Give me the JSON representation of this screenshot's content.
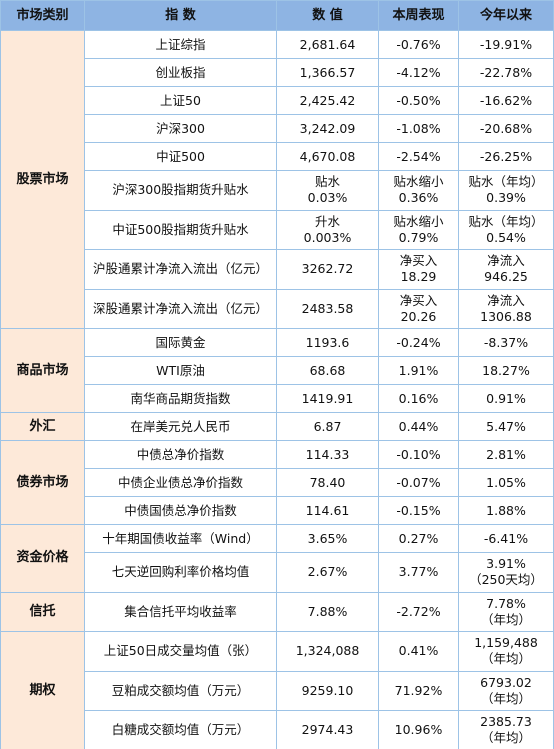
{
  "header": [
    "市场类别",
    "指 数",
    "数 值",
    "本周表现",
    "今年以来"
  ],
  "groups": [
    {
      "category": "股票市场",
      "rows": [
        [
          "上证综指",
          "2,681.64",
          "-0.76%",
          "-19.91%"
        ],
        [
          "创业板指",
          "1,366.57",
          "-4.12%",
          "-22.78%"
        ],
        [
          "上证50",
          "2,425.42",
          "-0.50%",
          "-16.62%"
        ],
        [
          "沪深300",
          "3,242.09",
          "-1.08%",
          "-20.68%"
        ],
        [
          "中证500",
          "4,670.08",
          "-2.54%",
          "-26.25%"
        ],
        [
          "沪深300股指期货升贴水",
          [
            "贴水",
            "0.03%"
          ],
          [
            "贴水缩小",
            "0.36%"
          ],
          [
            "贴水（年均）",
            "0.39%"
          ]
        ],
        [
          "中证500股指期货升贴水",
          [
            "升水",
            "0.003%"
          ],
          [
            "贴水缩小",
            "0.79%"
          ],
          [
            "贴水（年均）",
            "0.54%"
          ]
        ],
        [
          "沪股通累计净流入流出（亿元）",
          "3262.72",
          [
            "净买入",
            "18.29"
          ],
          [
            "净流入",
            "946.25"
          ]
        ],
        [
          "深股通累计净流入流出（亿元）",
          "2483.58",
          [
            "净买入",
            "20.26"
          ],
          [
            "净流入",
            "1306.88"
          ]
        ]
      ]
    },
    {
      "category": "商品市场",
      "rows": [
        [
          "国际黄金",
          "1193.6",
          "-0.24%",
          "-8.37%"
        ],
        [
          "WTI原油",
          "68.68",
          "1.91%",
          "18.27%"
        ],
        [
          "南华商品期货指数",
          "1419.91",
          "0.16%",
          "0.91%"
        ]
      ]
    },
    {
      "category": "外汇",
      "rows": [
        [
          "在岸美元兑人民币",
          "6.87",
          "0.44%",
          "5.47%"
        ]
      ]
    },
    {
      "category": "债券市场",
      "rows": [
        [
          "中债总净价指数",
          "114.33",
          "-0.10%",
          "2.81%"
        ],
        [
          "中债企业债总净价指数",
          "78.40",
          "-0.07%",
          "1.05%"
        ],
        [
          "中债国债总净价指数",
          "114.61",
          "-0.15%",
          "1.88%"
        ]
      ]
    },
    {
      "category": "资金价格",
      "rows": [
        [
          "十年期国债收益率（Wind）",
          "3.65%",
          "0.27%",
          "-6.41%"
        ],
        [
          "七天逆回购利率价格均值",
          "2.67%",
          "3.77%",
          [
            "3.91%",
            "（250天均）"
          ]
        ]
      ]
    },
    {
      "category": "信托",
      "rows": [
        [
          "集合信托平均收益率",
          "7.88%",
          "-2.72%",
          [
            "7.78%",
            "（年均）"
          ]
        ]
      ]
    },
    {
      "category": "期权",
      "rows": [
        [
          "上证50日成交量均值（张）",
          "1,324,088",
          "0.41%",
          [
            "1,159,488",
            "（年均）"
          ]
        ],
        [
          "豆粕成交额均值（万元）",
          "9259.10",
          "71.92%",
          [
            "6793.02",
            "（年均）"
          ]
        ],
        [
          "白糖成交额均值（万元）",
          "2974.43",
          "10.96%",
          [
            "2385.73",
            "（年均）"
          ]
        ]
      ]
    }
  ]
}
